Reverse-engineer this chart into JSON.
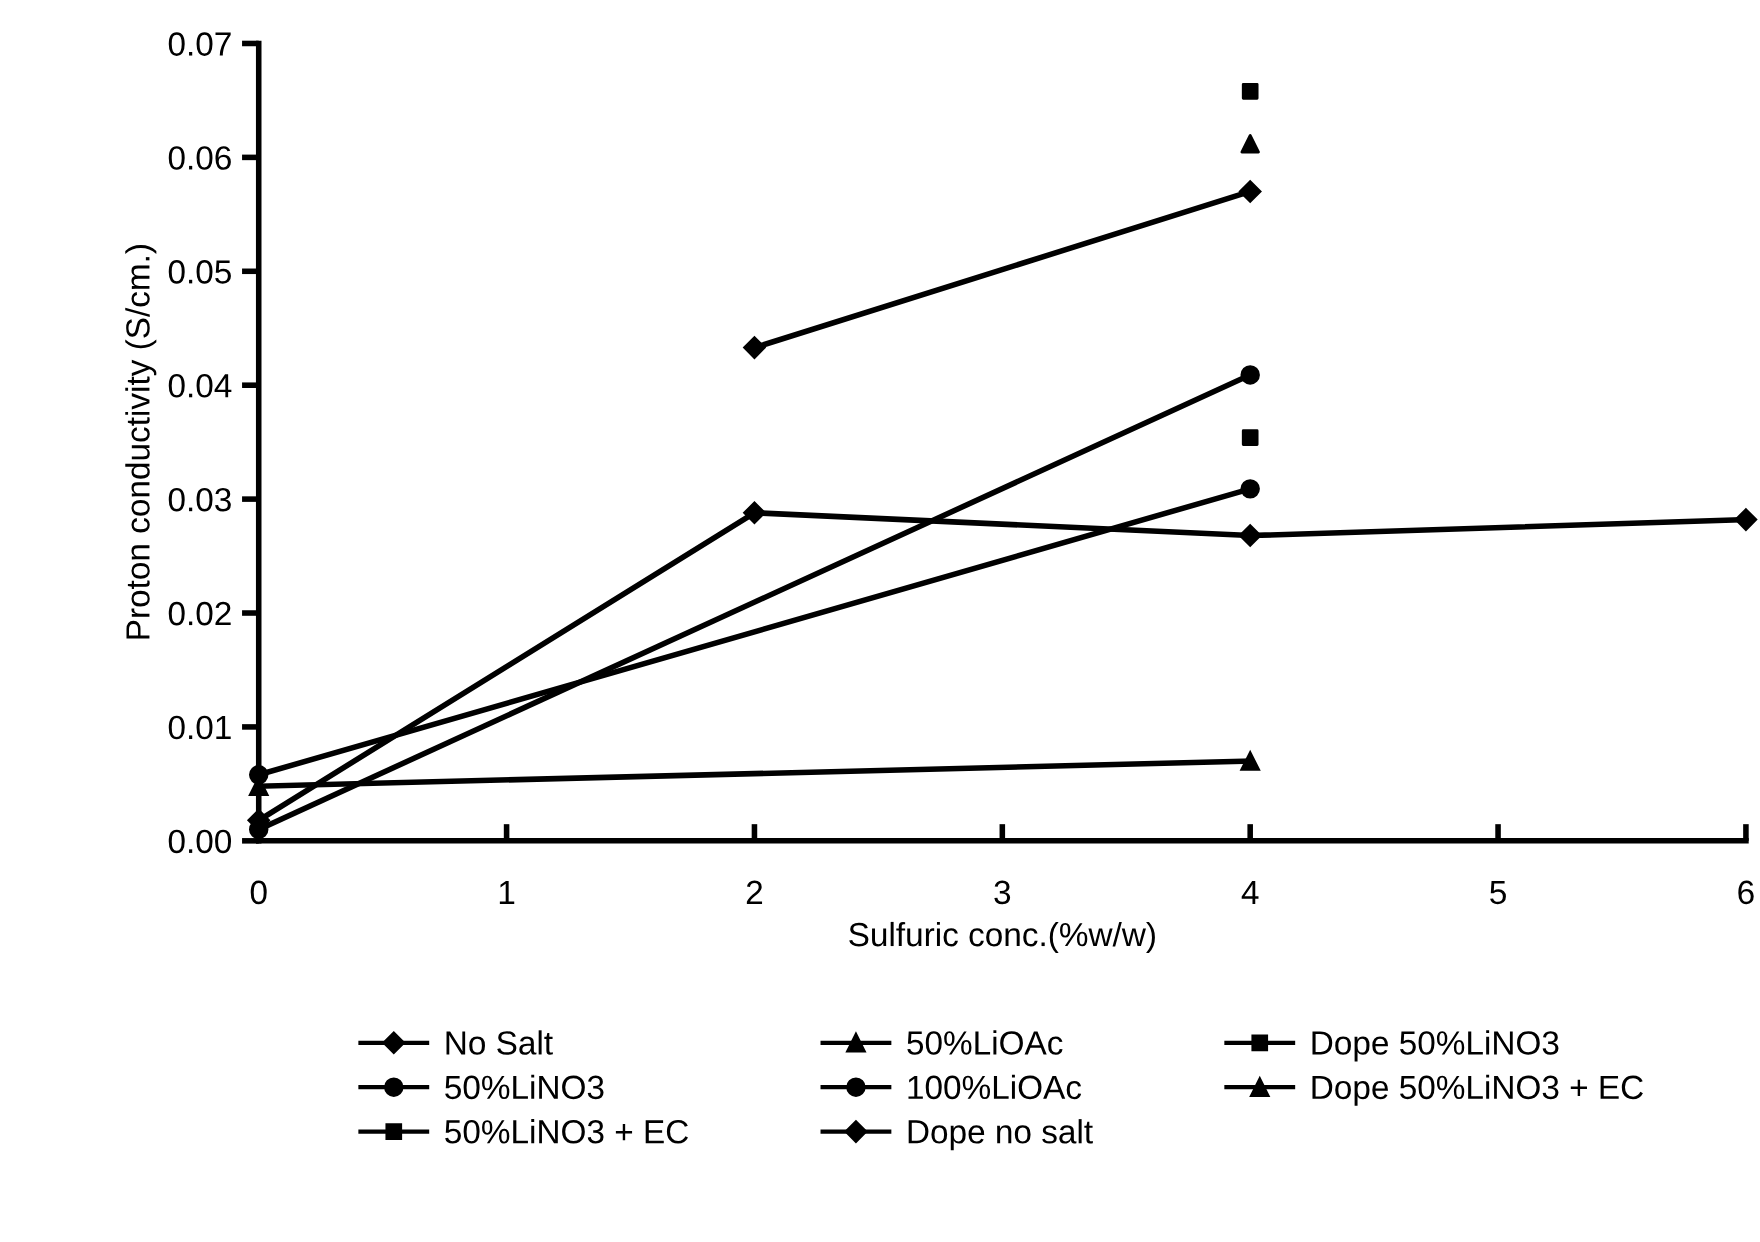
{
  "chart_data": {
    "type": "line",
    "xlabel": "Sulfuric conc.(%w/w)",
    "ylabel": "Proton conductivity (S/cm.)",
    "xlim": [
      0,
      6
    ],
    "ylim": [
      0,
      0.07
    ],
    "xticks": [
      0,
      1,
      2,
      3,
      4,
      5,
      6
    ],
    "yticks": [
      {
        "value": 0,
        "label": "0.00"
      },
      {
        "value": 0.01,
        "label": "0.01"
      },
      {
        "value": 0.02,
        "label": "0.02"
      },
      {
        "value": 0.03,
        "label": "0.03"
      },
      {
        "value": 0.04,
        "label": "0.04"
      },
      {
        "value": 0.05,
        "label": "0.05"
      },
      {
        "value": 0.06,
        "label": "0.06"
      },
      {
        "value": 0.07,
        "label": "0.07"
      }
    ],
    "grid": false,
    "legend": "bottom",
    "line_style": "solid",
    "series": [
      {
        "name": "No Salt",
        "marker": "diamond",
        "color": "#000000",
        "x": [
          0,
          2,
          4,
          6
        ],
        "values": [
          0.0018,
          0.0288,
          0.0268,
          0.0282
        ]
      },
      {
        "name": "50%LiNO3",
        "marker": "circle",
        "color": "#000000",
        "x": [
          0,
          4
        ],
        "values": [
          0.0058,
          0.0309
        ]
      },
      {
        "name": "50%LiNO3 + EC",
        "type": "scatter",
        "marker": "square",
        "color": "#000000",
        "x": [
          4
        ],
        "values": [
          0.0354
        ]
      },
      {
        "name": "50%LiOAc",
        "marker": "triangle",
        "color": "#000000",
        "x": [
          0,
          4
        ],
        "values": [
          0.0048,
          0.007
        ]
      },
      {
        "name": "100%LiOAc",
        "marker": "circle",
        "color": "#000000",
        "x": [
          0,
          4
        ],
        "values": [
          0.001,
          0.0409
        ]
      },
      {
        "name": "Dope no salt",
        "marker": "diamond",
        "color": "#000000",
        "x": [
          2,
          4
        ],
        "values": [
          0.0433,
          0.057
        ]
      },
      {
        "name": "Dope 50%LiNO3",
        "type": "scatter",
        "marker": "square",
        "color": "#000000",
        "x": [
          4
        ],
        "values": [
          0.0658
        ]
      },
      {
        "name": "Dope 50%LiNO3 + EC",
        "type": "scatter",
        "marker": "triangle",
        "color": "#000000",
        "x": [
          4
        ],
        "values": [
          0.0612
        ]
      }
    ]
  }
}
